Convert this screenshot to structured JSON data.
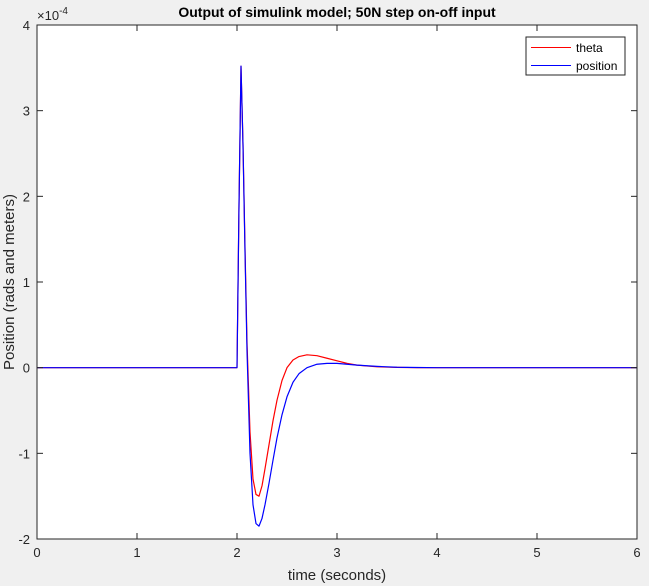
{
  "chart_data": {
    "type": "line",
    "title": "Output of simulink model; 50N step on-off input",
    "xlabel": "time (seconds)",
    "ylabel": "Position (rads and meters)",
    "exponent_label": "×10",
    "exponent_power": "-4",
    "xlim": [
      0,
      6
    ],
    "ylim": [
      -2,
      4
    ],
    "xticks": [
      0,
      1,
      2,
      3,
      4,
      5,
      6
    ],
    "xtick_labels": [
      "0",
      "1",
      "2",
      "3",
      "4",
      "5",
      "6"
    ],
    "yticks": [
      -2,
      -1,
      0,
      1,
      2,
      3,
      4
    ],
    "ytick_labels": [
      "-2",
      "-1",
      "0",
      "1",
      "2",
      "3",
      "4"
    ],
    "grid": false,
    "legend_position": "top-right",
    "series": [
      {
        "name": "theta",
        "color": "#ff0000",
        "x": [
          0,
          1,
          2.0,
          2.02,
          2.04,
          2.06,
          2.08,
          2.1,
          2.13,
          2.16,
          2.19,
          2.22,
          2.25,
          2.28,
          2.32,
          2.36,
          2.4,
          2.45,
          2.5,
          2.56,
          2.62,
          2.7,
          2.8,
          2.9,
          3.0,
          3.1,
          3.2,
          3.4,
          3.6,
          3.8,
          4.0,
          5.0,
          6.0
        ],
        "y": [
          0,
          0,
          0,
          1.9,
          3.52,
          2.6,
          1.4,
          0.3,
          -0.75,
          -1.3,
          -1.48,
          -1.5,
          -1.38,
          -1.18,
          -0.9,
          -0.62,
          -0.38,
          -0.15,
          0.0,
          0.09,
          0.13,
          0.15,
          0.14,
          0.11,
          0.08,
          0.05,
          0.03,
          0.01,
          0.003,
          0.0,
          0.0,
          0.0,
          0.0
        ]
      },
      {
        "name": "position",
        "color": "#0000ff",
        "x": [
          0,
          1,
          2.0,
          2.02,
          2.04,
          2.06,
          2.08,
          2.1,
          2.13,
          2.16,
          2.19,
          2.22,
          2.25,
          2.28,
          2.32,
          2.36,
          2.4,
          2.45,
          2.5,
          2.56,
          2.62,
          2.7,
          2.8,
          2.9,
          3.0,
          3.1,
          3.2,
          3.4,
          3.6,
          3.8,
          4.0,
          5.0,
          6.0
        ],
        "y": [
          0,
          0,
          0,
          1.9,
          3.52,
          2.6,
          1.35,
          0.2,
          -1.0,
          -1.6,
          -1.82,
          -1.85,
          -1.76,
          -1.6,
          -1.35,
          -1.08,
          -0.82,
          -0.55,
          -0.34,
          -0.17,
          -0.07,
          0.0,
          0.04,
          0.05,
          0.05,
          0.04,
          0.03,
          0.015,
          0.005,
          0.002,
          0.0,
          0.0,
          0.0
        ]
      }
    ]
  }
}
